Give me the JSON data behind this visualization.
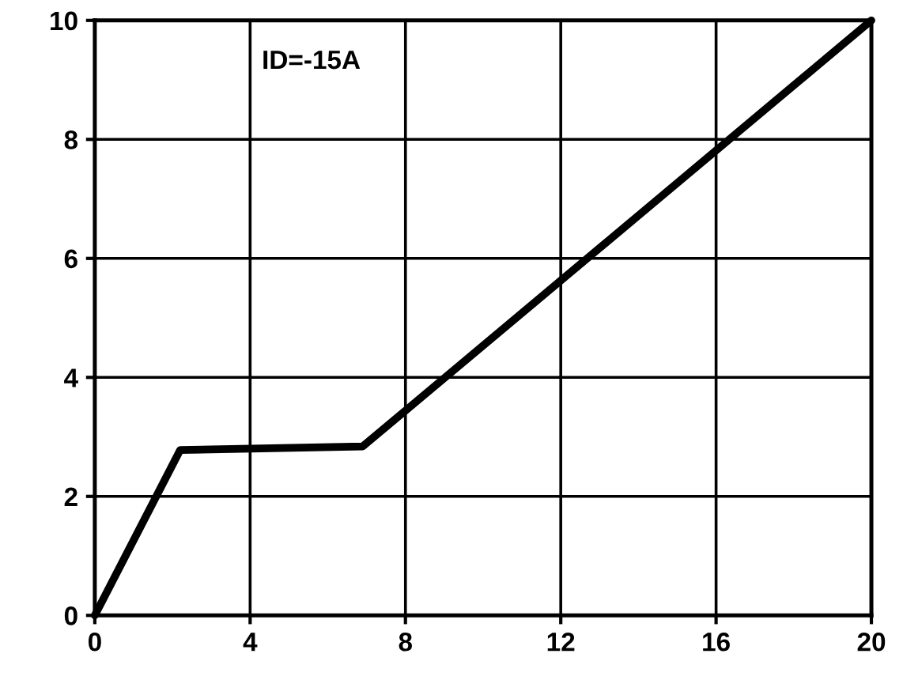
{
  "chart_data": {
    "type": "line",
    "x": [
      0,
      2.2,
      6.9,
      20
    ],
    "series": [
      {
        "color": "#000000",
        "values": [
          0,
          2.78,
          2.84,
          10
        ]
      }
    ],
    "xlim": [
      0,
      20
    ],
    "ylim": [
      0,
      10
    ],
    "xticks": [
      0,
      4,
      8,
      12,
      16,
      20
    ],
    "yticks": [
      0,
      2,
      4,
      6,
      8,
      10
    ],
    "grid": true,
    "marker": "none",
    "line_style": "solid",
    "annotations": [
      "ID=-15A"
    ]
  }
}
